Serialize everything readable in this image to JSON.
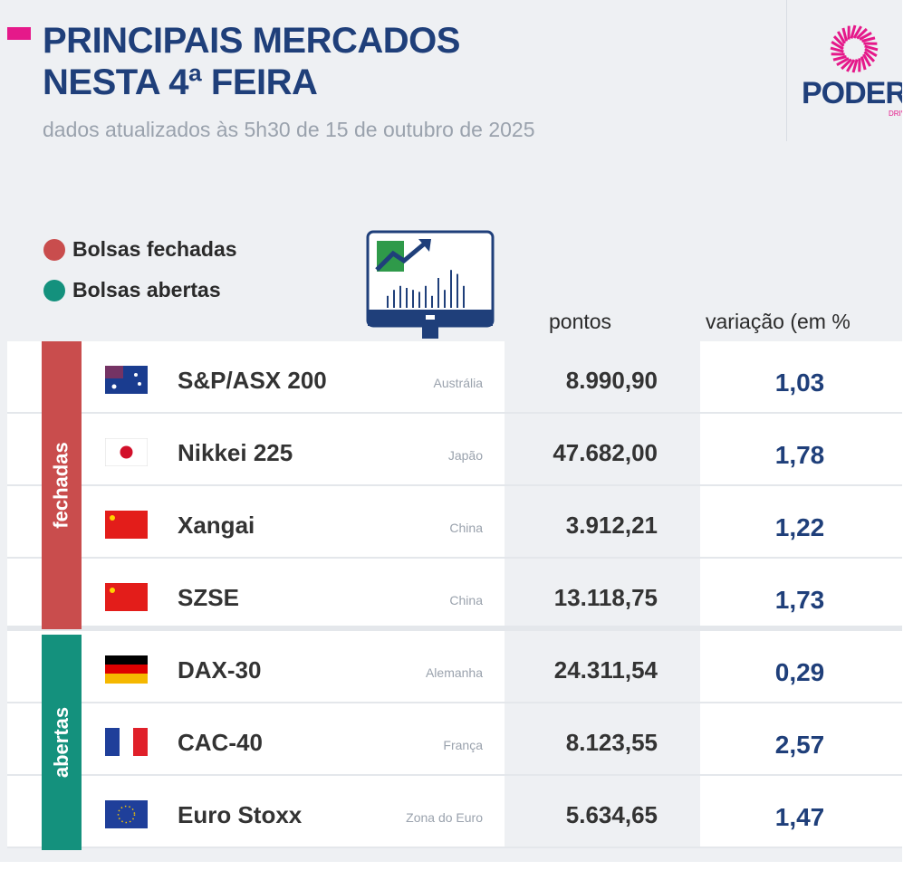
{
  "header": {
    "title_line1": "PRINCIPAIS MERCADOS",
    "title_line2": "NESTA 4ª FEIRA",
    "subtitle": "dados atualizados às 5h30 de 15 de outubro de 2025",
    "logo_text": "PODER",
    "logo_sub": "DRIVE"
  },
  "legend": {
    "closed": "Bolsas fechadas",
    "open": "Bolsas abertas"
  },
  "colors": {
    "closed": "#c94d4d",
    "open": "#14917d",
    "accent": "#e5198a",
    "title": "#1f3f7a"
  },
  "chart_data": {
    "type": "table",
    "columns": [
      "pontos",
      "variação (em %"
    ],
    "groups": [
      {
        "label": "fechadas",
        "rows": [
          0,
          1,
          2,
          3
        ]
      },
      {
        "label": "abertas",
        "rows": [
          4,
          5,
          6
        ]
      }
    ],
    "rows": [
      {
        "flag": "australia-flag",
        "name": "S&P/ASX 200",
        "country": "Austrália",
        "points": "8.990,90",
        "variation": "1,03"
      },
      {
        "flag": "japan-flag",
        "name": "Nikkei 225",
        "country": "Japão",
        "points": "47.682,00",
        "variation": "1,78"
      },
      {
        "flag": "china-flag",
        "name": "Xangai",
        "country": "China",
        "points": "3.912,21",
        "variation": "1,22"
      },
      {
        "flag": "china-flag",
        "name": "SZSE",
        "country": "China",
        "points": "13.118,75",
        "variation": "1,73"
      },
      {
        "flag": "germany-flag",
        "name": "DAX-30",
        "country": "Alemanha",
        "points": "24.311,54",
        "variation": "0,29"
      },
      {
        "flag": "france-flag",
        "name": "CAC-40",
        "country": "França",
        "points": "8.123,55",
        "variation": "2,57"
      },
      {
        "flag": "eu-flag",
        "name": "Euro Stoxx",
        "country": "Zona do Euro",
        "points": "5.634,65",
        "variation": "1,47"
      }
    ]
  }
}
